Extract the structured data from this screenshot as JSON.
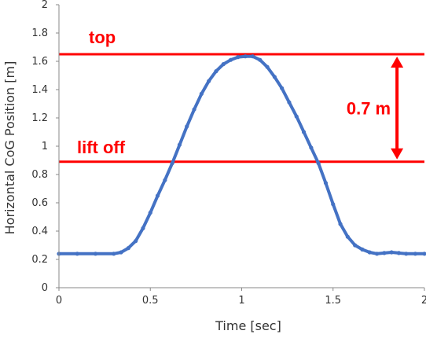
{
  "chart_data": {
    "type": "scatter",
    "title": "",
    "xlabel": "Time [sec]",
    "ylabel": "Horizontal CoG Position [m]",
    "xlim": [
      0,
      2
    ],
    "ylim": [
      0,
      2
    ],
    "x_ticks": [
      "0",
      "0.5",
      "1",
      "1.5",
      "2"
    ],
    "y_ticks": [
      "0",
      "0.2",
      "0.4",
      "0.6",
      "0.8",
      "1",
      "1.2",
      "1.4",
      "1.6",
      "1.8",
      "2"
    ],
    "grid": false,
    "series": [
      {
        "color": "#4472c4",
        "points": [
          [
            0.0,
            0.24
          ],
          [
            0.1,
            0.24
          ],
          [
            0.2,
            0.24
          ],
          [
            0.3,
            0.24
          ],
          [
            0.34,
            0.25
          ],
          [
            0.38,
            0.28
          ],
          [
            0.42,
            0.33
          ],
          [
            0.46,
            0.42
          ],
          [
            0.5,
            0.53
          ],
          [
            0.54,
            0.65
          ],
          [
            0.58,
            0.76
          ],
          [
            0.62,
            0.88
          ],
          [
            0.66,
            1.01
          ],
          [
            0.7,
            1.14
          ],
          [
            0.74,
            1.26
          ],
          [
            0.78,
            1.37
          ],
          [
            0.82,
            1.46
          ],
          [
            0.86,
            1.53
          ],
          [
            0.9,
            1.58
          ],
          [
            0.94,
            1.61
          ],
          [
            0.98,
            1.63
          ],
          [
            1.02,
            1.635
          ],
          [
            1.06,
            1.635
          ],
          [
            1.1,
            1.61
          ],
          [
            1.14,
            1.56
          ],
          [
            1.18,
            1.49
          ],
          [
            1.22,
            1.41
          ],
          [
            1.26,
            1.31
          ],
          [
            1.3,
            1.21
          ],
          [
            1.34,
            1.1
          ],
          [
            1.38,
            0.99
          ],
          [
            1.42,
            0.88
          ],
          [
            1.46,
            0.74
          ],
          [
            1.5,
            0.59
          ],
          [
            1.54,
            0.45
          ],
          [
            1.58,
            0.36
          ],
          [
            1.62,
            0.3
          ],
          [
            1.66,
            0.27
          ],
          [
            1.7,
            0.25
          ],
          [
            1.74,
            0.24
          ],
          [
            1.78,
            0.245
          ],
          [
            1.82,
            0.25
          ],
          [
            1.86,
            0.245
          ],
          [
            1.9,
            0.24
          ],
          [
            1.95,
            0.24
          ],
          [
            2.0,
            0.24
          ]
        ]
      }
    ],
    "reference_lines": [
      {
        "y": 1.65,
        "label": "top",
        "color": "#ff0000"
      },
      {
        "y": 0.89,
        "label": "lift off",
        "color": "#ff0000"
      }
    ],
    "annotation": {
      "label": "0.7 m",
      "x": 1.85,
      "y_from": 0.89,
      "y_to": 1.65,
      "color": "#ff0000"
    }
  }
}
